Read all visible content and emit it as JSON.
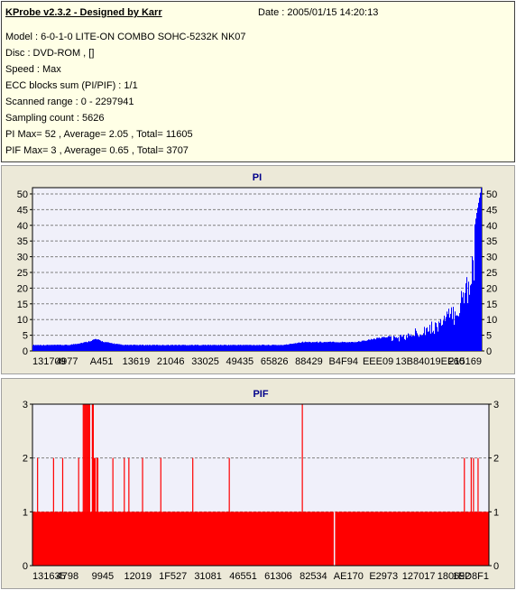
{
  "info": {
    "title": "KProbe v2.3.2 - Designed by Karr",
    "date": "Date : 2005/01/15 14:20:13",
    "lines": [
      "Model : 6-0-1-0 LITE-ON COMBO SOHC-5232K NK07",
      "Disc : DVD-ROM ,  []",
      "Speed : Max",
      "ECC blocks sum (PI/PIF) : 1/1",
      "Scanned range : 0 - 2297941",
      "Sampling count : 5626",
      "PI Max= 52 , Average= 2.05 , Total= 11605",
      "PIF Max= 3 , Average= 0.65 , Total= 3707"
    ]
  },
  "chart_data": [
    {
      "type": "bar",
      "title": "PI",
      "color": "#0000ff",
      "ylim": [
        0,
        52
      ],
      "yticks": [
        "0",
        "5",
        "10",
        "15",
        "20",
        "25",
        "30",
        "35",
        "40",
        "45",
        "50"
      ],
      "xticks": [
        "131709",
        "4977",
        "A451",
        "13619",
        "21046",
        "33025",
        "49435",
        "65826",
        "88429",
        "B4F94",
        "EEE09",
        "13B840",
        "19EF60",
        "215169"
      ],
      "grid": true,
      "x": [
        0,
        0.04,
        0.08,
        0.12,
        0.14,
        0.16,
        0.2,
        0.24,
        0.28,
        0.32,
        0.36,
        0.4,
        0.44,
        0.48,
        0.52,
        0.56,
        0.6,
        0.64,
        0.68,
        0.72,
        0.76,
        0.8,
        0.84,
        0.86,
        0.88,
        0.9,
        0.92,
        0.94,
        0.95,
        0.96,
        0.97,
        0.98,
        0.99,
        1.0
      ],
      "values": [
        2,
        2,
        2,
        3,
        4,
        3,
        2,
        2,
        2,
        2,
        2,
        2,
        2,
        2,
        2,
        2,
        3,
        3,
        3,
        3,
        4,
        5,
        6,
        8,
        9,
        10,
        13,
        15,
        18,
        22,
        27,
        35,
        44,
        52
      ]
    },
    {
      "type": "bar",
      "title": "PIF",
      "color": "#ff0000",
      "ylim": [
        0,
        3
      ],
      "yticks": [
        "0",
        "1",
        "2",
        "3"
      ],
      "xticks": [
        "131635",
        "4798",
        "9945",
        "12019",
        "1F527",
        "31081",
        "46551",
        "61306",
        "82534",
        "AE170",
        "E2973",
        "127017",
        "180692",
        "1ED8F1"
      ],
      "grid": true,
      "base": 1,
      "gaps": [
        0.66
      ],
      "spikes": [
        {
          "x": 0.01,
          "v": 2
        },
        {
          "x": 0.045,
          "v": 2
        },
        {
          "x": 0.065,
          "v": 2
        },
        {
          "x": 0.1,
          "v": 2
        },
        {
          "x": 0.11,
          "v": 3
        },
        {
          "x": 0.112,
          "v": 3
        },
        {
          "x": 0.114,
          "v": 3
        },
        {
          "x": 0.116,
          "v": 3
        },
        {
          "x": 0.118,
          "v": 3
        },
        {
          "x": 0.12,
          "v": 3
        },
        {
          "x": 0.122,
          "v": 3
        },
        {
          "x": 0.124,
          "v": 3
        },
        {
          "x": 0.13,
          "v": 3
        },
        {
          "x": 0.132,
          "v": 3
        },
        {
          "x": 0.134,
          "v": 2
        },
        {
          "x": 0.136,
          "v": 2
        },
        {
          "x": 0.14,
          "v": 2
        },
        {
          "x": 0.142,
          "v": 2
        },
        {
          "x": 0.175,
          "v": 2
        },
        {
          "x": 0.2,
          "v": 2
        },
        {
          "x": 0.21,
          "v": 2
        },
        {
          "x": 0.24,
          "v": 2
        },
        {
          "x": 0.28,
          "v": 2
        },
        {
          "x": 0.35,
          "v": 2
        },
        {
          "x": 0.43,
          "v": 2
        },
        {
          "x": 0.59,
          "v": 3
        },
        {
          "x": 0.945,
          "v": 2
        },
        {
          "x": 0.96,
          "v": 2
        },
        {
          "x": 0.965,
          "v": 2
        },
        {
          "x": 0.975,
          "v": 2
        }
      ]
    }
  ]
}
